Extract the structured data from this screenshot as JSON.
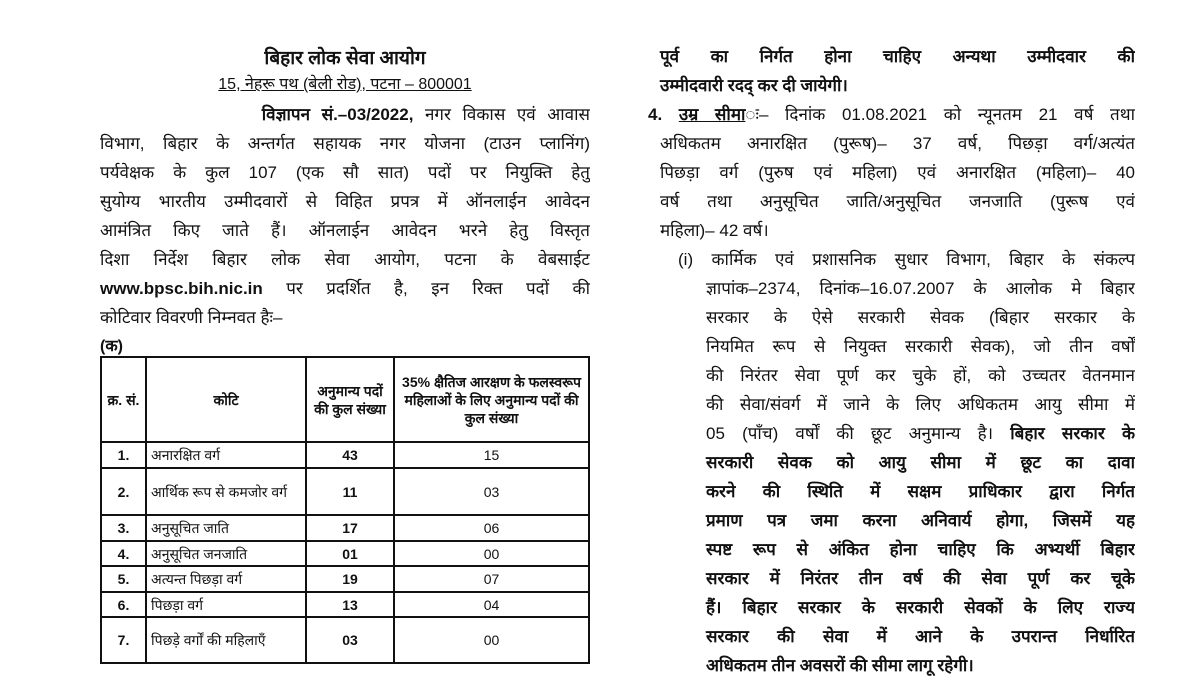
{
  "header": {
    "title": "बिहार लोक सेवा आयोग",
    "address": "15, नेहरू पथ (बेली रोड), पटना – 800001"
  },
  "left": {
    "lines": [
      [
        {
          "t": "              ",
          "s": ""
        },
        {
          "t": "विज्ञापन सं.–03/2022,",
          "s": "b"
        },
        {
          "t": " नगर विकास एवं आवास",
          "s": ""
        }
      ],
      [
        {
          "t": "विभाग, बिहार के अन्तर्गत सहायक नगर योजना (टाउन प्लानिंग)",
          "s": ""
        }
      ],
      [
        {
          "t": "पर्यवेक्षक के कुल 107 (एक सौ सात) पदों पर नियुक्ति हेतु",
          "s": ""
        }
      ],
      [
        {
          "t": "सुयोग्य भारतीय उम्मीदवारों से विहित प्रपत्र में ऑनलाईन आवेदन",
          "s": ""
        }
      ],
      [
        {
          "t": "आमंत्रित किए जाते हैं। ऑनलाईन आवेदन भरने हेतु विस्तृत",
          "s": ""
        }
      ],
      [
        {
          "t": "दिशा निर्देश बिहार लोक सेवा आयोग, पटना के वेबसाईट",
          "s": ""
        }
      ],
      [
        {
          "t": "www.bpsc.bih.nic.in",
          "s": "b"
        },
        {
          "t": " पर प्रदर्शित है, इन रिक्त पदों की",
          "s": ""
        }
      ],
      [
        {
          "t": "कोटिवार विवरणी निम्नवत हैः–",
          "s": ""
        }
      ]
    ]
  },
  "table": {
    "label": "(क)",
    "headers": [
      "क्र. सं.",
      "कोटि",
      "अनुमान्य पदों की कुल संख्या",
      "35% क्षैतिज आरक्षण के फलस्वरूप महिलाओं के लिए अनुमान्य पदों की कुल संख्या"
    ],
    "rows": [
      {
        "sn": "1.",
        "cat": "अनारक्षित वर्ग",
        "total": "43",
        "women": "15"
      },
      {
        "sn": "2.",
        "cat": "आर्थिक रूप से कमजोर वर्ग",
        "total": "11",
        "women": "03"
      },
      {
        "sn": "3.",
        "cat": "अनुसूचित जाति",
        "total": "17",
        "women": "06"
      },
      {
        "sn": "4.",
        "cat": "अनुसूचित जनजाति",
        "total": "01",
        "women": "00"
      },
      {
        "sn": "5.",
        "cat": "अत्यन्त पिछड़ा वर्ग",
        "total": "19",
        "women": "07"
      },
      {
        "sn": "6.",
        "cat": "पिछड़ा वर्ग",
        "total": "13",
        "women": "04"
      },
      {
        "sn": "7.",
        "cat": "पिछड़े वर्गों की महिलाएँ",
        "total": "03",
        "women": "00"
      }
    ]
  },
  "right": {
    "lines": [
      {
        "indent": "20",
        "seg": [
          {
            "t": "पूर्व का निर्गत होना चाहिए अन्यथा उम्मीदवार की",
            "s": "b"
          }
        ]
      },
      {
        "indent": "20",
        "last": true,
        "seg": [
          {
            "t": "उम्मीदवारी रदद् कर दी जायेगी।",
            "s": "b"
          }
        ]
      },
      {
        "indent": "8",
        "seg": [
          {
            "t": "4. ",
            "s": "b"
          },
          {
            "t": "उम्र सीमा",
            "s": "u"
          },
          {
            "t": "ः– दिनांक 01.08.2021 को न्यूनतम 21 वर्ष तथा",
            "s": ""
          }
        ]
      },
      {
        "indent": "20",
        "seg": [
          {
            "t": "अधिकतम अनारक्षित (पुरूष)– 37 वर्ष, पिछड़ा वर्ग/अत्यंत",
            "s": ""
          }
        ]
      },
      {
        "indent": "20",
        "seg": [
          {
            "t": "पिछड़ा वर्ग (पुरुष एवं महिला) एवं अनारक्षित (महिला)– 40",
            "s": ""
          }
        ]
      },
      {
        "indent": "20",
        "seg": [
          {
            "t": "वर्ष तथा अनुसूचित जाति/अनुसूचित जनजाति (पुरूष एवं",
            "s": ""
          }
        ]
      },
      {
        "indent": "20",
        "last": true,
        "seg": [
          {
            "t": "महिला)– 42 वर्ष।",
            "s": ""
          }
        ]
      },
      {
        "indent": "38",
        "seg": [
          {
            "t": "(i) कार्मिक एवं प्रशासनिक सुधार विभाग, बिहार के संकल्प",
            "s": ""
          }
        ]
      },
      {
        "indent": "66",
        "seg": [
          {
            "t": "ज्ञापांक–2374, दिनांक–16.07.2007 के आलोक मे बिहार",
            "s": ""
          }
        ]
      },
      {
        "indent": "66",
        "seg": [
          {
            "t": "सरकार के ऐसे सरकारी सेवक (बिहार सरकार के",
            "s": ""
          }
        ]
      },
      {
        "indent": "66",
        "seg": [
          {
            "t": "नियमित रूप से नियुक्त सरकारी सेवक), जो तीन वर्षों",
            "s": ""
          }
        ]
      },
      {
        "indent": "66",
        "seg": [
          {
            "t": "की निरंतर सेवा पूर्ण कर चुके हों, को उच्चतर वेतनमान",
            "s": ""
          }
        ]
      },
      {
        "indent": "66",
        "seg": [
          {
            "t": "की सेवा/संवर्ग में जाने के लिए अधिकतम आयु सीमा में",
            "s": ""
          }
        ]
      },
      {
        "indent": "66",
        "seg": [
          {
            "t": "05 (पाँच) वर्षों की छूट अनुमान्य है। ",
            "s": ""
          },
          {
            "t": "बिहार सरकार के",
            "s": "b"
          }
        ]
      },
      {
        "indent": "66",
        "seg": [
          {
            "t": "सरकारी सेवक को आयु सीमा में छूट का दावा",
            "s": "b"
          }
        ]
      },
      {
        "indent": "66",
        "seg": [
          {
            "t": "करने की स्थिति में सक्षम प्राधिकार द्वारा निर्गत",
            "s": "b"
          }
        ]
      },
      {
        "indent": "66",
        "seg": [
          {
            "t": "प्रमाण पत्र जमा करना अनिवार्य होगा, जिसमें यह",
            "s": "b"
          }
        ]
      },
      {
        "indent": "66",
        "seg": [
          {
            "t": "स्पष्ट रूप से अंकित होना चाहिए कि अभ्यर्थी बिहार",
            "s": "b"
          }
        ]
      },
      {
        "indent": "66",
        "seg": [
          {
            "t": "सरकार में निरंतर तीन वर्ष की सेवा पूर्ण कर चूके",
            "s": "b"
          }
        ]
      },
      {
        "indent": "66",
        "seg": [
          {
            "t": "हैं। बिहार सरकार के सरकारी सेवकों के लिए राज्य",
            "s": "b"
          }
        ]
      },
      {
        "indent": "66",
        "seg": [
          {
            "t": "सरकार की सेवा में आने के उपरान्त निर्धारित",
            "s": "b"
          }
        ]
      },
      {
        "indent": "66",
        "last": true,
        "seg": [
          {
            "t": "अधिकतम तीन अवसरों की सीमा लागू रहेगी।",
            "s": "b"
          }
        ]
      }
    ]
  }
}
